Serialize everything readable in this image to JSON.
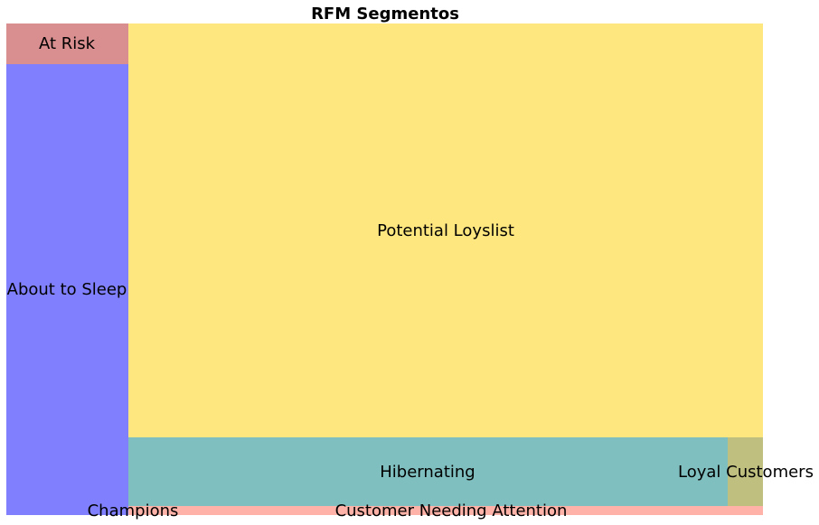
{
  "chart_data": {
    "type": "treemap",
    "title": "RFM Segmentos",
    "segments": [
      {
        "name": "At Risk",
        "value": 67,
        "color": "#d98f8f"
      },
      {
        "name": "About to Sleep",
        "value": 535,
        "color": "#8080ff"
      },
      {
        "name": "Potential Loyslist",
        "value": 3471,
        "color": "#ffe780"
      },
      {
        "name": "Hibernating",
        "value": 535,
        "color": "#80bfbf"
      },
      {
        "name": "Loyal Customers",
        "value": 32,
        "color": "#bfbf80"
      },
      {
        "name": "Champions",
        "value": 2,
        "color": "#ffb3b3"
      },
      {
        "name": "Customer Needing Attention",
        "value": 76,
        "color": "#ffb3a8"
      }
    ]
  }
}
